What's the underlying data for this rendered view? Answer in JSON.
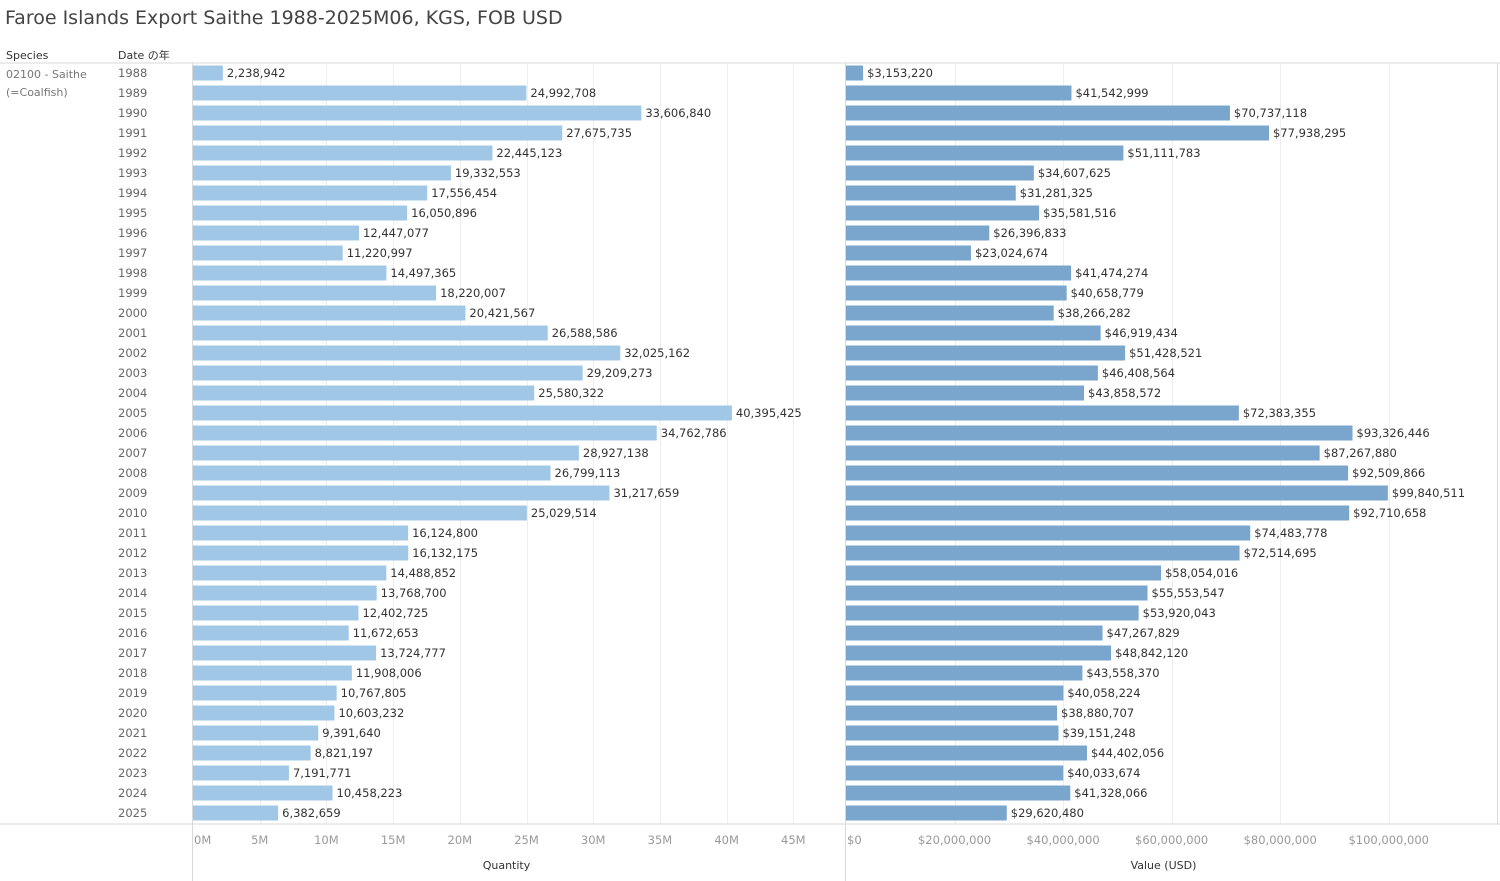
{
  "title": "Faroe Islands Export Saithe 1988-2025M06, KGS, FOB USD",
  "headers": {
    "species": "Species",
    "date": "Date の年"
  },
  "species": {
    "line1": "02100 - Saithe",
    "line2": "(=Coalfish)"
  },
  "colors": {
    "quantity": "#a0c8e6",
    "value": "#7aa5cc",
    "gridline": "#eeeeee",
    "border": "#d9d9d9"
  },
  "chart_data": [
    {
      "type": "bar",
      "orientation": "horizontal",
      "xlabel": "Quantity",
      "xlim": [
        0,
        47000000
      ],
      "ticks": [
        0,
        5000000,
        10000000,
        15000000,
        20000000,
        25000000,
        30000000,
        35000000,
        40000000,
        45000000
      ],
      "tick_labels": [
        "0M",
        "5M",
        "10M",
        "15M",
        "20M",
        "25M",
        "30M",
        "35M",
        "40M",
        "45M"
      ],
      "categories": [
        "1988",
        "1989",
        "1990",
        "1991",
        "1992",
        "1993",
        "1994",
        "1995",
        "1996",
        "1997",
        "1998",
        "1999",
        "2000",
        "2001",
        "2002",
        "2003",
        "2004",
        "2005",
        "2006",
        "2007",
        "2008",
        "2009",
        "2010",
        "2011",
        "2012",
        "2013",
        "2014",
        "2015",
        "2016",
        "2017",
        "2018",
        "2019",
        "2020",
        "2021",
        "2022",
        "2023",
        "2024",
        "2025"
      ],
      "values": [
        2238942,
        24992708,
        33606840,
        27675735,
        22445123,
        19332553,
        17556454,
        16050896,
        12447077,
        11220997,
        14497365,
        18220007,
        20421567,
        26588586,
        32025162,
        29209273,
        25580322,
        40395425,
        34762786,
        28927138,
        26799113,
        31217659,
        25029514,
        16124800,
        16132175,
        14488852,
        13768700,
        12402725,
        11672653,
        13724777,
        11908006,
        10767805,
        10603232,
        9391640,
        8821197,
        7191771,
        10458223,
        6382659
      ],
      "labels": [
        "2,238,942",
        "24,992,708",
        "33,606,840",
        "27,675,735",
        "22,445,123",
        "19,332,553",
        "17,556,454",
        "16,050,896",
        "12,447,077",
        "11,220,997",
        "14,497,365",
        "18,220,007",
        "20,421,567",
        "26,588,586",
        "32,025,162",
        "29,209,273",
        "25,580,322",
        "40,395,425",
        "34,762,786",
        "28,927,138",
        "26,799,113",
        "31,217,659",
        "25,029,514",
        "16,124,800",
        "16,132,175",
        "14,488,852",
        "13,768,700",
        "12,402,725",
        "11,672,653",
        "13,724,777",
        "11,908,006",
        "10,767,805",
        "10,603,232",
        "9,391,640",
        "8,821,197",
        "7,191,771",
        "10,458,223",
        "6,382,659"
      ]
    },
    {
      "type": "bar",
      "orientation": "horizontal",
      "xlabel": "Value (USD)",
      "xlim": [
        0,
        117000000
      ],
      "ticks": [
        0,
        20000000,
        40000000,
        60000000,
        80000000,
        100000000
      ],
      "tick_labels": [
        "$0",
        "$20,000,000",
        "$40,000,000",
        "$60,000,000",
        "$80,000,000",
        "$100,000,000"
      ],
      "categories": [
        "1988",
        "1989",
        "1990",
        "1991",
        "1992",
        "1993",
        "1994",
        "1995",
        "1996",
        "1997",
        "1998",
        "1999",
        "2000",
        "2001",
        "2002",
        "2003",
        "2004",
        "2005",
        "2006",
        "2007",
        "2008",
        "2009",
        "2010",
        "2011",
        "2012",
        "2013",
        "2014",
        "2015",
        "2016",
        "2017",
        "2018",
        "2019",
        "2020",
        "2021",
        "2022",
        "2023",
        "2024",
        "2025"
      ],
      "values": [
        3153220,
        41542999,
        70737118,
        77938295,
        51111783,
        34607625,
        31281325,
        35581516,
        26396833,
        23024674,
        41474274,
        40658779,
        38266282,
        46919434,
        51428521,
        46408564,
        43858572,
        72383355,
        93326446,
        87267880,
        92509866,
        99840511,
        92710658,
        74483778,
        72514695,
        58054016,
        55553547,
        53920043,
        47267829,
        48842120,
        43558370,
        40058224,
        38880707,
        39151248,
        44402056,
        40033674,
        41328066,
        29620480
      ],
      "labels": [
        "$3,153,220",
        "$41,542,999",
        "$70,737,118",
        "$77,938,295",
        "$51,111,783",
        "$34,607,625",
        "$31,281,325",
        "$35,581,516",
        "$26,396,833",
        "$23,024,674",
        "$41,474,274",
        "$40,658,779",
        "$38,266,282",
        "$46,919,434",
        "$51,428,521",
        "$46,408,564",
        "$43,858,572",
        "$72,383,355",
        "$93,326,446",
        "$87,267,880",
        "$92,509,866",
        "$99,840,511",
        "$92,710,658",
        "$74,483,778",
        "$72,514,695",
        "$58,054,016",
        "$55,553,547",
        "$53,920,043",
        "$47,267,829",
        "$48,842,120",
        "$43,558,370",
        "$40,058,224",
        "$38,880,707",
        "$39,151,248",
        "$44,402,056",
        "$40,033,674",
        "$41,328,066",
        "$29,620,480"
      ]
    }
  ]
}
